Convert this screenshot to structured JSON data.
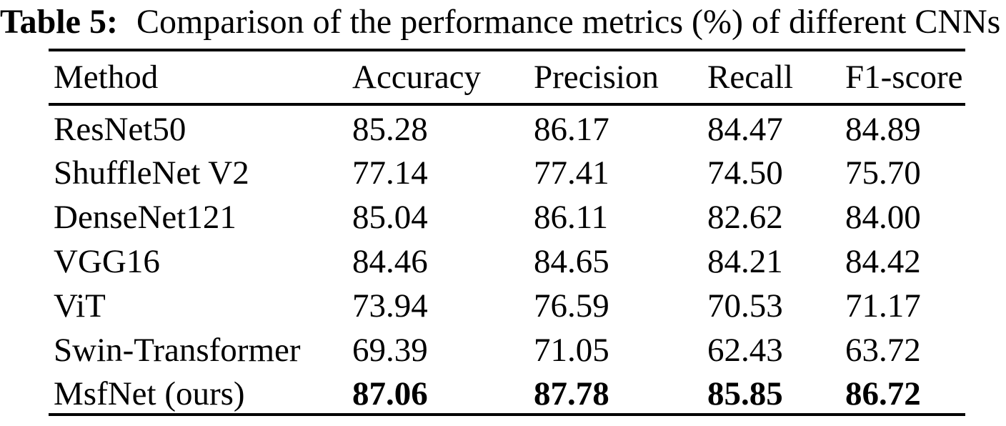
{
  "caption": {
    "label": "Table 5:",
    "text": "Comparison of the performance metrics (%) of different CNNs"
  },
  "table": {
    "columns": [
      "Method",
      "Accuracy",
      "Precision",
      "Recall",
      "F1-score"
    ],
    "rows": [
      {
        "method": "ResNet50",
        "values": [
          "85.28",
          "86.17",
          "84.47",
          "84.89"
        ],
        "emphasis": false
      },
      {
        "method": "ShuffleNet V2",
        "values": [
          "77.14",
          "77.41",
          "74.50",
          "75.70"
        ],
        "emphasis": false
      },
      {
        "method": "DenseNet121",
        "values": [
          "85.04",
          "86.11",
          "82.62",
          "84.00"
        ],
        "emphasis": false
      },
      {
        "method": "VGG16",
        "values": [
          "84.46",
          "84.65",
          "84.21",
          "84.42"
        ],
        "emphasis": false
      },
      {
        "method": "ViT",
        "values": [
          "73.94",
          "76.59",
          "70.53",
          "71.17"
        ],
        "emphasis": false
      },
      {
        "method": "Swin-Transformer",
        "values": [
          "69.39",
          "71.05",
          "62.43",
          "63.72"
        ],
        "emphasis": false
      },
      {
        "method": "MsfNet (ours)",
        "values": [
          "87.06",
          "87.78",
          "85.85",
          "86.72"
        ],
        "emphasis": true
      }
    ]
  },
  "colors": {
    "text": "#000000",
    "background": "#ffffff",
    "rule": "#000000"
  }
}
